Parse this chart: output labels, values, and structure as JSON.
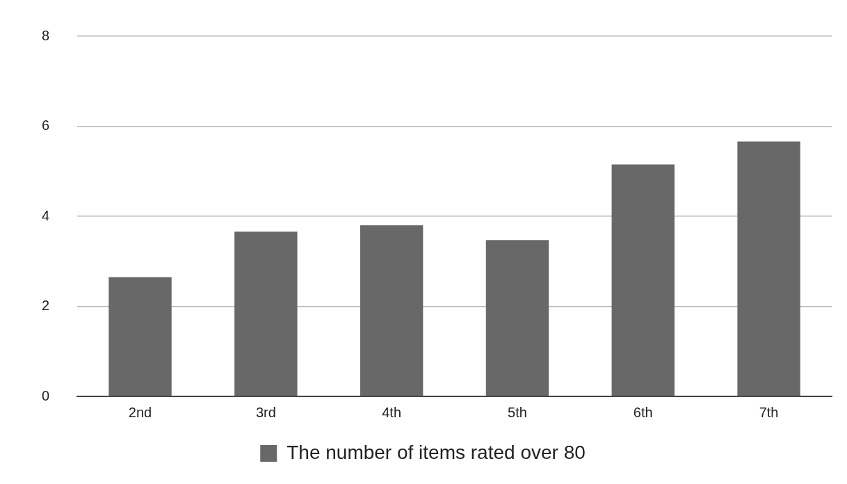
{
  "chart_data": {
    "type": "bar",
    "categories": [
      "2nd",
      "3rd",
      "4th",
      "5th",
      "6th",
      "7th"
    ],
    "series": [
      {
        "name": "The number of items rated over 80",
        "color": "#686868",
        "values": [
          2.65,
          3.66,
          3.8,
          3.47,
          5.15,
          5.66
        ]
      }
    ],
    "ylim": [
      0,
      8
    ],
    "yticks": [
      0,
      2,
      4,
      6,
      8
    ],
    "grid": "y",
    "legend": "bottom"
  }
}
